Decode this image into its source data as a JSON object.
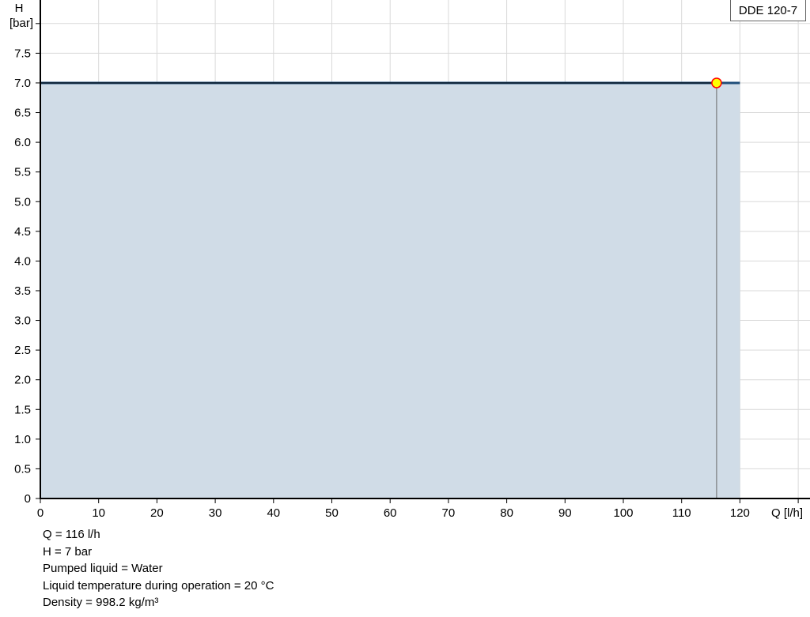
{
  "chart_data": {
    "type": "area",
    "title": "",
    "xlabel": "Q [l/h]",
    "ylabel": "H",
    "yunit": "[bar]",
    "xlim": [
      0,
      130
    ],
    "ylim": [
      0,
      8
    ],
    "x_ticks": [
      0,
      10,
      20,
      30,
      40,
      50,
      60,
      70,
      80,
      90,
      100,
      110,
      120
    ],
    "y_ticks": [
      "0",
      "0.5",
      "1.0",
      "1.5",
      "2.0",
      "2.5",
      "3.0",
      "3.5",
      "4.0",
      "4.5",
      "5.0",
      "5.5",
      "6.0",
      "6.5",
      "7.0",
      "7.5"
    ],
    "grid": true,
    "legend": {
      "label": "DDE 120-7",
      "placement": "top-right"
    },
    "series": [
      {
        "name": "DDE 120-7",
        "x": [
          0,
          120
        ],
        "y": [
          7,
          7
        ],
        "color": "#1f4e79",
        "fill": "#d0dce7"
      }
    ],
    "operating_point": {
      "x": 116,
      "y": 7,
      "color": "#ffff00",
      "border": "#ff0000"
    }
  },
  "info": [
    "Q = 116 l/h",
    "H = 7 bar",
    "Pumped liquid = Water",
    "Liquid temperature during operation = 20 °C",
    "Density = 998.2 kg/m³"
  ]
}
